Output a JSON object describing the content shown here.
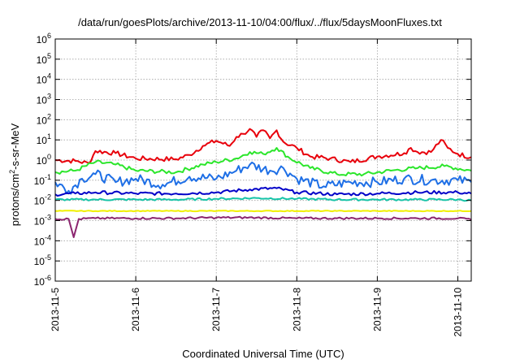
{
  "chart_data": {
    "type": "line",
    "title": "/data/run/goesPlots/archive/2013-11-10/04:00/flux/../flux/5daysMoonFluxes.txt",
    "xlabel": "Coordinated Universal Time (UTC)",
    "ylabel": {
      "prefix": "protons/cm",
      "sup": "2",
      "suffix": "-s-sr-MeV"
    },
    "y_scale": "log",
    "ylim": [
      1e-06,
      1000000.0
    ],
    "y_ticks": [
      {
        "value": 1e-06,
        "base": "10",
        "exp": "-6"
      },
      {
        "value": 1e-05,
        "base": "10",
        "exp": "-5"
      },
      {
        "value": 0.0001,
        "base": "10",
        "exp": "-4"
      },
      {
        "value": 0.001,
        "base": "10",
        "exp": "-3"
      },
      {
        "value": 0.01,
        "base": "10",
        "exp": "-2"
      },
      {
        "value": 0.1,
        "base": "10",
        "exp": "-1"
      },
      {
        "value": 1,
        "base": "10",
        "exp": "0"
      },
      {
        "value": 10,
        "base": "10",
        "exp": "1"
      },
      {
        "value": 100,
        "base": "10",
        "exp": "2"
      },
      {
        "value": 1000,
        "base": "10",
        "exp": "3"
      },
      {
        "value": 10000,
        "base": "10",
        "exp": "4"
      },
      {
        "value": 100000,
        "base": "10",
        "exp": "5"
      },
      {
        "value": 1000000,
        "base": "10",
        "exp": "6"
      }
    ],
    "xlim": [
      "2013-11-05",
      "2013-11-10 04:00"
    ],
    "x_ticks": [
      "2013-11-5",
      "2013-11-6",
      "2013-11-7",
      "2013-11-8",
      "2013-11-9",
      "2013-11-10"
    ],
    "grid": true,
    "legend": "none",
    "series": [
      {
        "color": "#e8000b",
        "points": [
          [
            "2013-11-05 00:00",
            1.0
          ],
          [
            "2013-11-05 06:00",
            0.9
          ],
          [
            "2013-11-05 10:00",
            0.7
          ],
          [
            "2013-11-05 12:00",
            2.8
          ],
          [
            "2013-11-05 18:00",
            2.2
          ],
          [
            "2013-11-06 00:00",
            1.2
          ],
          [
            "2013-11-06 12:00",
            1.1
          ],
          [
            "2013-11-06 16:00",
            1.8
          ],
          [
            "2013-11-06 20:00",
            5.0
          ],
          [
            "2013-11-07 00:00",
            9.0
          ],
          [
            "2013-11-07 04:00",
            5.0
          ],
          [
            "2013-11-07 06:00",
            14.0
          ],
          [
            "2013-11-07 08:00",
            20.0
          ],
          [
            "2013-11-07 10:00",
            35.0
          ],
          [
            "2013-11-07 12:00",
            14.0
          ],
          [
            "2013-11-07 14:00",
            30.0
          ],
          [
            "2013-11-07 16:00",
            12.0
          ],
          [
            "2013-11-07 18:00",
            30.0
          ],
          [
            "2013-11-07 20:00",
            8.0
          ],
          [
            "2013-11-08 00:00",
            4.0
          ],
          [
            "2013-11-08 04:00",
            1.5
          ],
          [
            "2013-11-08 10:00",
            1.2
          ],
          [
            "2013-11-08 16:00",
            0.8
          ],
          [
            "2013-11-09 00:00",
            1.5
          ],
          [
            "2013-11-09 08:00",
            2.2
          ],
          [
            "2013-11-09 10:00",
            4.0
          ],
          [
            "2013-11-09 12:00",
            2.5
          ],
          [
            "2013-11-09 16:00",
            2.5
          ],
          [
            "2013-11-09 19:00",
            10.0
          ],
          [
            "2013-11-09 21:00",
            4.0
          ],
          [
            "2013-11-10 00:00",
            2.0
          ],
          [
            "2013-11-10 04:00",
            1.4
          ]
        ]
      },
      {
        "color": "#2ce62c",
        "points": [
          [
            "2013-11-05 00:00",
            0.25
          ],
          [
            "2013-11-05 06:00",
            0.3
          ],
          [
            "2013-11-05 12:00",
            0.8
          ],
          [
            "2013-11-05 18:00",
            0.6
          ],
          [
            "2013-11-06 00:00",
            0.3
          ],
          [
            "2013-11-06 12:00",
            0.25
          ],
          [
            "2013-11-06 20:00",
            0.6
          ],
          [
            "2013-11-07 00:00",
            0.8
          ],
          [
            "2013-11-07 06:00",
            1.2
          ],
          [
            "2013-11-07 10:00",
            2.5
          ],
          [
            "2013-11-07 14:00",
            2.0
          ],
          [
            "2013-11-07 18:00",
            4.0
          ],
          [
            "2013-11-07 22:00",
            1.2
          ],
          [
            "2013-11-08 04:00",
            0.4
          ],
          [
            "2013-11-08 12:00",
            0.2
          ],
          [
            "2013-11-08 20:00",
            0.2
          ],
          [
            "2013-11-09 04:00",
            0.3
          ],
          [
            "2013-11-09 12:00",
            0.4
          ],
          [
            "2013-11-09 20:00",
            0.5
          ],
          [
            "2013-11-10 04:00",
            0.3
          ]
        ]
      },
      {
        "color": "#1e6fe6",
        "points": [
          [
            "2013-11-05 00:00",
            0.08
          ],
          [
            "2013-11-05 04:00",
            0.03
          ],
          [
            "2013-11-05 08:00",
            0.12
          ],
          [
            "2013-11-05 12:00",
            0.2
          ],
          [
            "2013-11-05 18:00",
            0.08
          ],
          [
            "2013-11-06 00:00",
            0.12
          ],
          [
            "2013-11-06 08:00",
            0.06
          ],
          [
            "2013-11-06 16:00",
            0.15
          ],
          [
            "2013-11-07 00:00",
            0.12
          ],
          [
            "2013-11-07 06:00",
            0.3
          ],
          [
            "2013-11-07 10:00",
            0.6
          ],
          [
            "2013-11-07 16:00",
            0.3
          ],
          [
            "2013-11-07 20:00",
            0.4
          ],
          [
            "2013-11-08 00:00",
            0.12
          ],
          [
            "2013-11-08 08:00",
            0.05
          ],
          [
            "2013-11-08 16:00",
            0.08
          ],
          [
            "2013-11-09 00:00",
            0.08
          ],
          [
            "2013-11-09 08:00",
            0.12
          ],
          [
            "2013-11-09 16:00",
            0.1
          ],
          [
            "2013-11-10 00:00",
            0.1
          ],
          [
            "2013-11-10 04:00",
            0.08
          ]
        ]
      },
      {
        "color": "#0000c8",
        "points": [
          [
            "2013-11-05 00:00",
            0.02
          ],
          [
            "2013-11-05 06:00",
            0.022
          ],
          [
            "2013-11-05 12:00",
            0.025
          ],
          [
            "2013-11-06 00:00",
            0.022
          ],
          [
            "2013-11-06 12:00",
            0.022
          ],
          [
            "2013-11-07 00:00",
            0.025
          ],
          [
            "2013-11-07 10:00",
            0.035
          ],
          [
            "2013-11-07 18:00",
            0.04
          ],
          [
            "2013-11-08 00:00",
            0.025
          ],
          [
            "2013-11-08 12:00",
            0.02
          ],
          [
            "2013-11-09 00:00",
            0.022
          ],
          [
            "2013-11-09 12:00",
            0.025
          ],
          [
            "2013-11-10 00:00",
            0.025
          ],
          [
            "2013-11-10 04:00",
            0.022
          ]
        ]
      },
      {
        "color": "#16c4a8",
        "points": [
          [
            "2013-11-05 00:00",
            0.011
          ],
          [
            "2013-11-05 12:00",
            0.011
          ],
          [
            "2013-11-06 00:00",
            0.011
          ],
          [
            "2013-11-06 12:00",
            0.011
          ],
          [
            "2013-11-07 00:00",
            0.012
          ],
          [
            "2013-11-07 12:00",
            0.013
          ],
          [
            "2013-11-08 00:00",
            0.012
          ],
          [
            "2013-11-08 12:00",
            0.011
          ],
          [
            "2013-11-09 00:00",
            0.011
          ],
          [
            "2013-11-09 12:00",
            0.011
          ],
          [
            "2013-11-10 00:00",
            0.011
          ],
          [
            "2013-11-10 04:00",
            0.01
          ]
        ]
      },
      {
        "color": "#f0f000",
        "points": [
          [
            "2013-11-05 00:00",
            0.003
          ],
          [
            "2013-11-05 12:00",
            0.003
          ],
          [
            "2013-11-06 00:00",
            0.003
          ],
          [
            "2013-11-06 12:00",
            0.003
          ],
          [
            "2013-11-07 00:00",
            0.003
          ],
          [
            "2013-11-07 12:00",
            0.003
          ],
          [
            "2013-11-08 00:00",
            0.003
          ],
          [
            "2013-11-08 12:00",
            0.003
          ],
          [
            "2013-11-09 00:00",
            0.003
          ],
          [
            "2013-11-09 12:00",
            0.003
          ],
          [
            "2013-11-10 00:00",
            0.003
          ],
          [
            "2013-11-10 04:00",
            0.003
          ]
        ]
      },
      {
        "color": "#8c2670",
        "points": [
          [
            "2013-11-05 00:00",
            0.0012
          ],
          [
            "2013-11-05 04:00",
            0.0012
          ],
          [
            "2013-11-05 05:30",
            0.00015
          ],
          [
            "2013-11-05 07:00",
            0.0012
          ],
          [
            "2013-11-05 12:00",
            0.0013
          ],
          [
            "2013-11-06 00:00",
            0.0013
          ],
          [
            "2013-11-06 12:00",
            0.0013
          ],
          [
            "2013-11-07 00:00",
            0.0014
          ],
          [
            "2013-11-07 12:00",
            0.0014
          ],
          [
            "2013-11-08 00:00",
            0.0013
          ],
          [
            "2013-11-08 12:00",
            0.0013
          ],
          [
            "2013-11-09 00:00",
            0.0013
          ],
          [
            "2013-11-09 12:00",
            0.0013
          ],
          [
            "2013-11-10 00:00",
            0.0013
          ],
          [
            "2013-11-10 04:00",
            0.0011
          ]
        ]
      }
    ]
  }
}
